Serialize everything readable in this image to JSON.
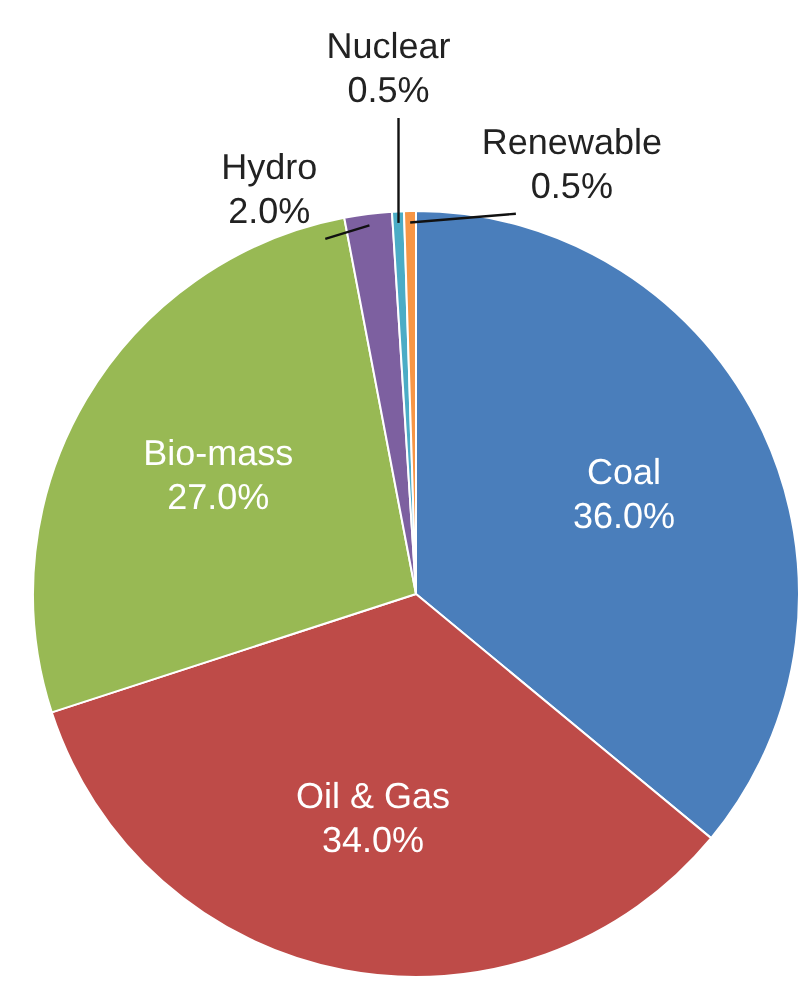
{
  "chart_data": {
    "type": "pie",
    "categories": [
      "Coal",
      "Oil & Gas",
      "Bio-mass",
      "Hydro",
      "Nuclear",
      "Renewable"
    ],
    "values": [
      36.0,
      34.0,
      27.0,
      2.0,
      0.5,
      0.5
    ],
    "colors": [
      "#4a7ebb",
      "#be4b48",
      "#98b954",
      "#7d60a0",
      "#4bacc6",
      "#f79646"
    ],
    "value_labels": [
      "36.0%",
      "34.0%",
      "27.0%",
      "2.0%",
      "0.5%",
      "0.5%"
    ],
    "legend": false
  }
}
